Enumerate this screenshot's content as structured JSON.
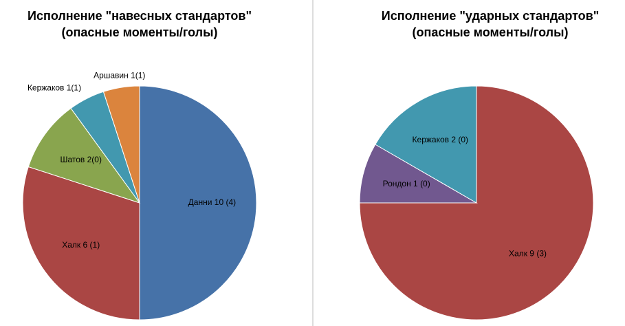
{
  "chart_data": [
    {
      "type": "pie",
      "title": "Исполнение \"навесных стандартов\"",
      "subtitle": "(опасные моменты/голы)",
      "categories": [
        "Данни  10 (4)",
        "Халк 6 (1)",
        "Шатов 2(0)",
        "Кержаков 1(1)",
        "Аршавин 1(1)"
      ],
      "values": [
        10,
        6,
        2,
        1,
        1
      ],
      "colors": [
        "#4672a8",
        "#aa4644",
        "#89a54e",
        "#4298af",
        "#db843d"
      ]
    },
    {
      "type": "pie",
      "title": "Исполнение \"ударных стандартов\"",
      "subtitle": "(опасные моменты/голы)",
      "categories": [
        "Халк 9 (3)",
        "Рондон   1 (0)",
        "Кержаков 2 (0)"
      ],
      "values": [
        9,
        1,
        2
      ],
      "colors": [
        "#aa4644",
        "#71588f",
        "#4298af"
      ]
    }
  ]
}
